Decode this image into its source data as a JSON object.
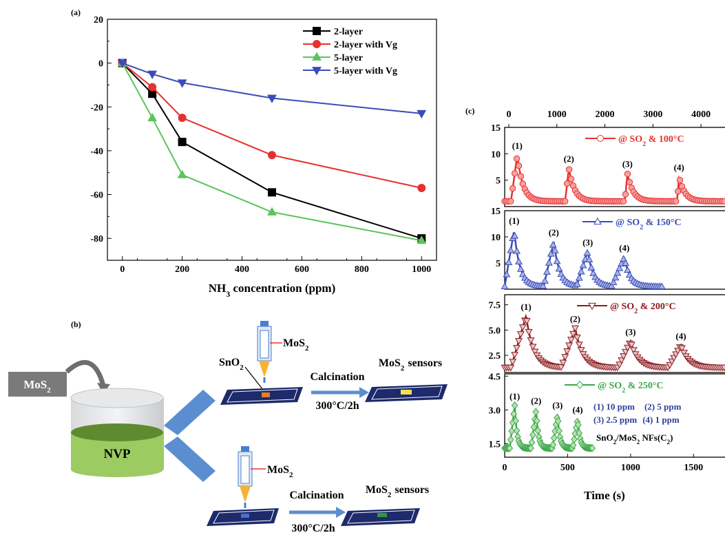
{
  "panel_a": {
    "label": "(a)",
    "xlabel": "NH3 concentration (ppm)",
    "xlabel_main": "NH",
    "xlabel_sub": "3",
    "xlabel_rest": " concentration (ppm)"
  },
  "panel_b": {
    "label": "(b)",
    "mos2_box": "MoS2",
    "beaker": "NVP",
    "syringe_label_top": "MoS2",
    "sno2": "SnO2",
    "calc_top": "Calcination",
    "temp_top": "300°C/2h",
    "sensors_top": "MoS2 sensors",
    "syringe_label_bottom": "MoS2",
    "calc_bottom": "Calcination",
    "temp_bottom": "300°C/2h",
    "sensors_bottom": "MoS2 sensors"
  },
  "panel_c": {
    "label": "(c)",
    "xlabel": "Time (s)",
    "legend_note": [
      "(1)  10 ppm",
      "(2)  5 ppm",
      "(3)  2.5 ppm",
      "(4)  1 ppm"
    ],
    "sample": "SnO2/MoS2 NFs(C2)"
  },
  "chart_data": [
    {
      "type": "line",
      "title": "",
      "xlabel": "NH3 concentration (ppm)",
      "ylabel": "",
      "x": [
        0,
        100,
        200,
        500,
        1000
      ],
      "xlim": [
        -50,
        1050
      ],
      "ylim": [
        -90,
        20
      ],
      "xticks": [
        0,
        200,
        400,
        600,
        800,
        1000
      ],
      "yticks": [
        20,
        0,
        -20,
        -40,
        -60,
        -80
      ],
      "legend_position": "top-right",
      "grid": false,
      "series": [
        {
          "name": "2-layer",
          "color": "#000000",
          "marker": "square",
          "values": [
            0,
            -14,
            -36,
            -59,
            -80
          ]
        },
        {
          "name": "2-layer with Vg",
          "color": "#e8302e",
          "marker": "circle",
          "values": [
            0,
            -11,
            -25,
            -42,
            -57
          ]
        },
        {
          "name": "5-layer",
          "color": "#5cc45a",
          "marker": "triangle-up",
          "values": [
            0,
            -25,
            -51,
            -68,
            -81
          ]
        },
        {
          "name": "5-layer with Vg",
          "color": "#3a4cb8",
          "marker": "triangle-down",
          "values": [
            0,
            -5,
            -9,
            -16,
            -23
          ]
        }
      ]
    },
    {
      "type": "line",
      "xlabel": "Time (s)",
      "ylabel": "",
      "top_axis_ticks": [
        0,
        1000,
        2000,
        3000,
        4000
      ],
      "bottom_axis_ticks": [
        0,
        500,
        1000,
        1500
      ],
      "xlim": [
        0,
        1750
      ],
      "grid": false,
      "subplots": [
        {
          "name": "@ SO2 & 100°C",
          "color": "#e8302e",
          "marker": "circle",
          "ylim": [
            0,
            15
          ],
          "yticks": [
            5,
            10,
            15
          ],
          "baseline": 1,
          "pulses": [
            {
              "label": "(1)",
              "start": 50,
              "peak_time": 100,
              "peak": 9.8
            },
            {
              "label": "(2)",
              "start": 480,
              "peak_time": 510,
              "peak": 7.3
            },
            {
              "label": "(3)",
              "start": 955,
              "peak_time": 975,
              "peak": 6.3
            },
            {
              "label": "(4)",
              "start": 1370,
              "peak_time": 1385,
              "peak": 5.7
            }
          ]
        },
        {
          "name": "@ SO2 & 150°C",
          "color": "#3a4cb8",
          "marker": "triangle-up",
          "ylim": [
            0,
            15
          ],
          "yticks": [
            5,
            10,
            15
          ],
          "baseline": 0.5,
          "pulses": [
            {
              "label": "(1)",
              "start": 0,
              "peak_time": 75,
              "peak": 11.3
            },
            {
              "label": "(2)",
              "start": 310,
              "peak_time": 390,
              "peak": 9.1
            },
            {
              "label": "(3)",
              "start": 570,
              "peak_time": 660,
              "peak": 7.2
            },
            {
              "label": "(4)",
              "start": 850,
              "peak_time": 950,
              "peak": 6.1
            }
          ]
        },
        {
          "name": "@ SO2 & 200°C",
          "color": "#8c1c22",
          "marker": "triangle-down",
          "ylim": [
            0.8,
            8.5
          ],
          "yticks": [
            2.5,
            5.0,
            7.5
          ],
          "baseline": 1.3,
          "pulses": [
            {
              "label": "(1)",
              "start": 50,
              "peak_time": 170,
              "peak": 6.4
            },
            {
              "label": "(2)",
              "start": 450,
              "peak_time": 560,
              "peak": 5.2
            },
            {
              "label": "(3)",
              "start": 900,
              "peak_time": 1000,
              "peak": 3.9
            },
            {
              "label": "(4)",
              "start": 1300,
              "peak_time": 1400,
              "peak": 3.5
            }
          ]
        },
        {
          "name": "@ SO2 & 250°C",
          "color": "#3aa84a",
          "marker": "diamond",
          "ylim": [
            0.9,
            4.6
          ],
          "yticks": [
            1.5,
            3.0,
            4.5
          ],
          "baseline": 1.3,
          "pulses": [
            {
              "label": "(1)",
              "start": 40,
              "peak_time": 80,
              "peak": 3.2
            },
            {
              "label": "(2)",
              "start": 210,
              "peak_time": 250,
              "peak": 3.0
            },
            {
              "label": "(3)",
              "start": 380,
              "peak_time": 420,
              "peak": 2.8
            },
            {
              "label": "(4)",
              "start": 540,
              "peak_time": 580,
              "peak": 2.6
            }
          ]
        }
      ]
    }
  ]
}
